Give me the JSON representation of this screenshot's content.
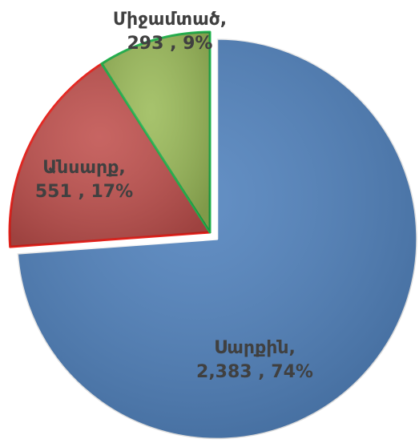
{
  "chart_data": {
    "type": "pie",
    "categories": [
      "Սարքին,",
      "Անսարք,",
      "Միջամտած,"
    ],
    "values": [
      2383,
      551,
      293
    ],
    "value_labels": [
      "2,383",
      "551",
      "293"
    ],
    "percentages": [
      74,
      17,
      9
    ],
    "percentage_labels": [
      "74%",
      "17%",
      "9%"
    ],
    "label_separator": " , ",
    "colors": [
      "#4f81bd",
      "#c0504d",
      "#9bbb59"
    ],
    "border_colors": [
      "#ffffff",
      "#e8221c",
      "#22b14c"
    ]
  }
}
